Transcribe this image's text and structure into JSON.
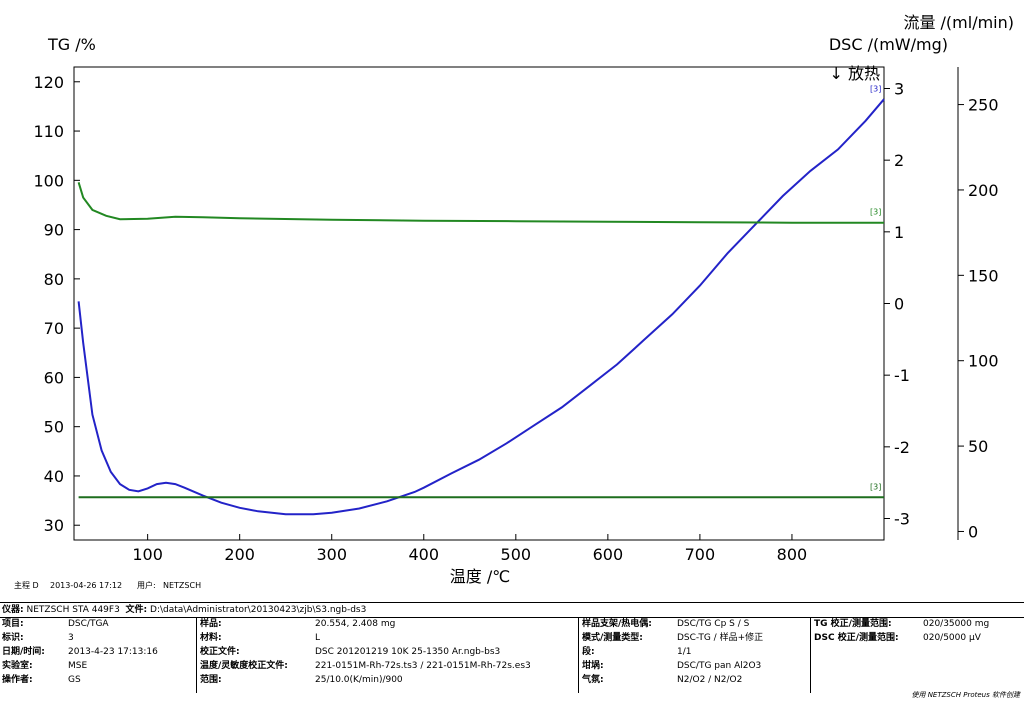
{
  "chart_data": {
    "type": "line",
    "x_label": "温度 /℃",
    "x_ticks": [
      100,
      200,
      300,
      400,
      500,
      600,
      700,
      800
    ],
    "xlim": [
      20,
      900
    ],
    "left_axis": {
      "label": "TG /%",
      "ticks": [
        30,
        40,
        50,
        60,
        70,
        80,
        90,
        100,
        110,
        120
      ],
      "ylim": [
        27,
        123
      ]
    },
    "right_axis_dsc": {
      "label": "DSC /(mW/mg)",
      "exo_label": "↓ 放热",
      "ticks": [
        -3,
        -2,
        -1,
        0,
        1,
        2,
        3
      ],
      "ylim": [
        -3.3,
        3.3
      ]
    },
    "right_axis_flow": {
      "label": "流量 /(ml/min)",
      "ticks": [
        0,
        50,
        100,
        150,
        200,
        250
      ],
      "ylim": [
        -5,
        272
      ]
    },
    "series": [
      {
        "axis": "dsc",
        "color": "#2323c8",
        "marker": "[3]",
        "points": [
          [
            25,
            0.03
          ],
          [
            30,
            -0.55
          ],
          [
            40,
            -1.55
          ],
          [
            50,
            -2.05
          ],
          [
            60,
            -2.35
          ],
          [
            70,
            -2.52
          ],
          [
            80,
            -2.6
          ],
          [
            90,
            -2.62
          ],
          [
            100,
            -2.58
          ],
          [
            110,
            -2.52
          ],
          [
            120,
            -2.5
          ],
          [
            130,
            -2.52
          ],
          [
            140,
            -2.57
          ],
          [
            160,
            -2.68
          ],
          [
            180,
            -2.78
          ],
          [
            200,
            -2.85
          ],
          [
            220,
            -2.9
          ],
          [
            250,
            -2.94
          ],
          [
            280,
            -2.94
          ],
          [
            300,
            -2.92
          ],
          [
            330,
            -2.86
          ],
          [
            360,
            -2.76
          ],
          [
            390,
            -2.63
          ],
          [
            400,
            -2.57
          ],
          [
            430,
            -2.37
          ],
          [
            460,
            -2.18
          ],
          [
            490,
            -1.95
          ],
          [
            520,
            -1.7
          ],
          [
            550,
            -1.45
          ],
          [
            580,
            -1.15
          ],
          [
            610,
            -0.85
          ],
          [
            640,
            -0.5
          ],
          [
            670,
            -0.15
          ],
          [
            700,
            0.25
          ],
          [
            730,
            0.7
          ],
          [
            760,
            1.1
          ],
          [
            790,
            1.5
          ],
          [
            820,
            1.85
          ],
          [
            850,
            2.15
          ],
          [
            880,
            2.55
          ],
          [
            900,
            2.85
          ]
        ]
      },
      {
        "axis": "tg",
        "color": "#228822",
        "marker": "[3]",
        "points": [
          [
            25,
            99.6
          ],
          [
            30,
            96.5
          ],
          [
            40,
            94
          ],
          [
            55,
            92.8
          ],
          [
            70,
            92.1
          ],
          [
            100,
            92.2
          ],
          [
            130,
            92.6
          ],
          [
            160,
            92.5
          ],
          [
            200,
            92.3
          ],
          [
            300,
            92
          ],
          [
            400,
            91.8
          ],
          [
            500,
            91.7
          ],
          [
            600,
            91.6
          ],
          [
            700,
            91.5
          ],
          [
            800,
            91.4
          ],
          [
            900,
            91.4
          ]
        ]
      },
      {
        "axis": "flow",
        "color": "#1e6e1e",
        "marker": "[3]",
        "points": [
          [
            25,
            20
          ],
          [
            900,
            20
          ]
        ]
      }
    ]
  },
  "meta": {
    "creator_label": "主程 D",
    "date": "2013-04-26 17:12",
    "user_label": "用户:",
    "user": "NETZSCH"
  },
  "info": {
    "instrument_label": "仪器:",
    "instrument": "NETZSCH STA 449F3",
    "file_label": "文件:",
    "file": "D:\\data\\Administrator\\20130423\\zjb\\S3.ngb-ds3",
    "c1": [
      {
        "k": "项目:",
        "v": "DSC/TGA"
      },
      {
        "k": "标识:",
        "v": "3"
      },
      {
        "k": "日期/时间:",
        "v": "2013-4-23 17:13:16"
      },
      {
        "k": "实验室:",
        "v": "MSE"
      },
      {
        "k": "操作者:",
        "v": "GS"
      }
    ],
    "c2": [
      {
        "k": "样品:",
        "v": "20.554, 2.408 mg"
      },
      {
        "k": "材料:",
        "v": "L"
      },
      {
        "k": "校正文件:",
        "v": "DSC 201201219 10K 25-1350 Ar.ngb-bs3"
      },
      {
        "k": "温度/灵敏度校正文件:",
        "v": "221-0151M-Rh-72s.ts3 / 221-0151M-Rh-72s.es3"
      },
      {
        "k": "范围:",
        "v": "25/10.0(K/min)/900"
      }
    ],
    "c3": [
      {
        "k": "样品支架/热电偶:",
        "v": "DSC/TG Cp S / S"
      },
      {
        "k": "模式/测量类型:",
        "v": "DSC-TG / 样品+修正"
      },
      {
        "k": "段:",
        "v": "1/1"
      },
      {
        "k": "坩埚:",
        "v": "DSC/TG pan Al2O3"
      },
      {
        "k": "气氛:",
        "v": "N2/O2 / N2/O2"
      }
    ],
    "c4": [
      {
        "k": "TG 校正/测量范围:",
        "v": "020/35000 mg"
      },
      {
        "k": "DSC 校正/测量范围:",
        "v": "020/5000 µV"
      }
    ],
    "footer": "使用 NETZSCH Proteus 软件创建"
  }
}
